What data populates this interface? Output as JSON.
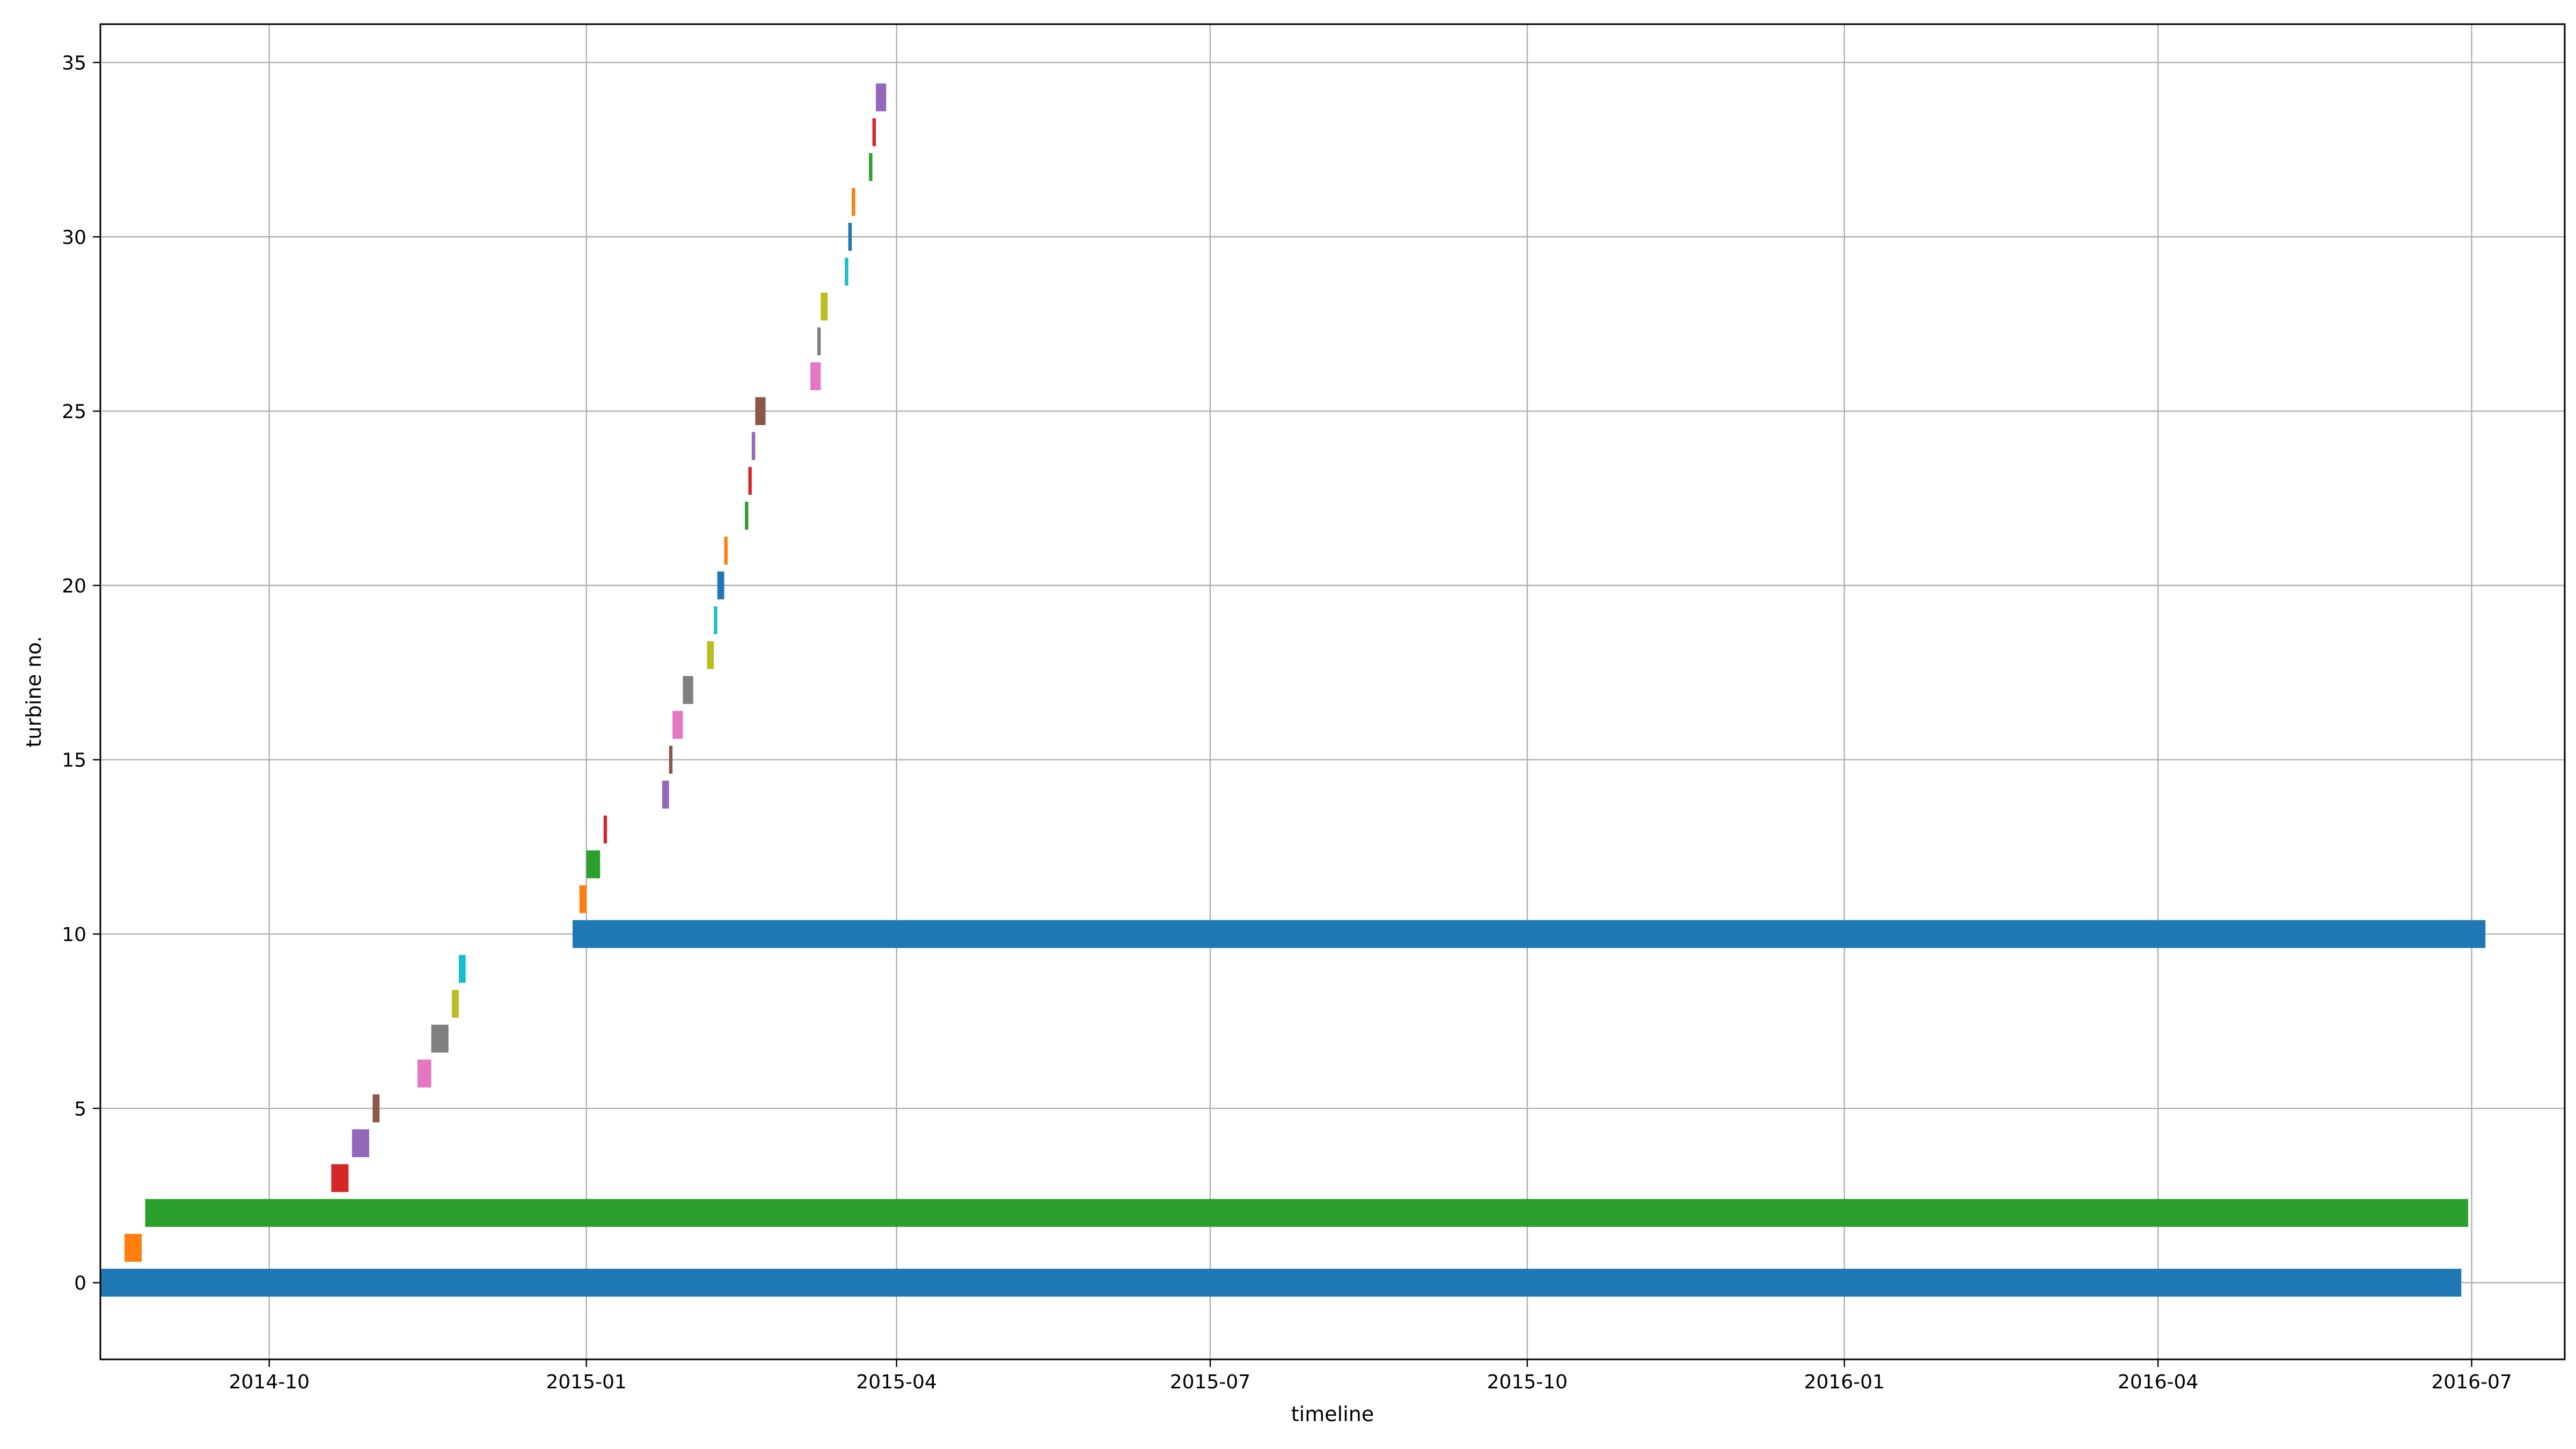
{
  "chart_data": {
    "type": "bar",
    "orientation": "horizontal-timeline",
    "title": "",
    "xlabel": "timeline",
    "ylabel": "turbine no.",
    "xlim": [
      "2014-08-13",
      "2016-07-28"
    ],
    "ylim": [
      -2.2,
      36.1
    ],
    "bar_height": 0.8,
    "grid": true,
    "x_ticks": [
      "2014-10",
      "2015-01",
      "2015-04",
      "2015-07",
      "2015-10",
      "2016-01",
      "2016-04",
      "2016-07"
    ],
    "y_ticks": [
      0,
      5,
      10,
      15,
      20,
      25,
      30,
      35
    ],
    "palette": [
      "#1f77b4",
      "#ff7f0e",
      "#2ca02c",
      "#d62728",
      "#9467bd",
      "#8c564b",
      "#e377c2",
      "#7f7f7f",
      "#bcbd22",
      "#17becf"
    ],
    "bars": [
      {
        "y": 0,
        "start": "2014-08-13",
        "end": "2016-06-28",
        "color": "#1f77b4"
      },
      {
        "y": 1,
        "start": "2014-08-20",
        "end": "2014-08-25",
        "color": "#ff7f0e"
      },
      {
        "y": 2,
        "start": "2014-08-26",
        "end": "2016-06-30",
        "color": "#2ca02c"
      },
      {
        "y": 3,
        "start": "2014-10-19",
        "end": "2014-10-24",
        "color": "#d62728"
      },
      {
        "y": 4,
        "start": "2014-10-25",
        "end": "2014-10-30",
        "color": "#9467bd"
      },
      {
        "y": 5,
        "start": "2014-10-31",
        "end": "2014-11-02",
        "color": "#8c564b"
      },
      {
        "y": 6,
        "start": "2014-11-13",
        "end": "2014-11-17",
        "color": "#e377c2"
      },
      {
        "y": 7,
        "start": "2014-11-17",
        "end": "2014-11-22",
        "color": "#7f7f7f"
      },
      {
        "y": 8,
        "start": "2014-11-23",
        "end": "2014-11-25",
        "color": "#bcbd22"
      },
      {
        "y": 9,
        "start": "2014-11-25",
        "end": "2014-11-27",
        "color": "#17becf"
      },
      {
        "y": 10,
        "start": "2014-12-28",
        "end": "2016-07-05",
        "color": "#1f77b4"
      },
      {
        "y": 11,
        "start": "2014-12-30",
        "end": "2015-01-01",
        "color": "#ff7f0e"
      },
      {
        "y": 12,
        "start": "2015-01-01",
        "end": "2015-01-05",
        "color": "#2ca02c"
      },
      {
        "y": 13,
        "start": "2015-01-06",
        "end": "2015-01-07",
        "color": "#d62728"
      },
      {
        "y": 14,
        "start": "2015-01-23",
        "end": "2015-01-25",
        "color": "#9467bd"
      },
      {
        "y": 15,
        "start": "2015-01-25",
        "end": "2015-01-26",
        "color": "#8c564b"
      },
      {
        "y": 16,
        "start": "2015-01-26",
        "end": "2015-01-29",
        "color": "#e377c2"
      },
      {
        "y": 17,
        "start": "2015-01-29",
        "end": "2015-02-01",
        "color": "#7f7f7f"
      },
      {
        "y": 18,
        "start": "2015-02-05",
        "end": "2015-02-07",
        "color": "#bcbd22"
      },
      {
        "y": 19,
        "start": "2015-02-07",
        "end": "2015-02-08",
        "color": "#17becf"
      },
      {
        "y": 20,
        "start": "2015-02-08",
        "end": "2015-02-10",
        "color": "#1f77b4"
      },
      {
        "y": 21,
        "start": "2015-02-10",
        "end": "2015-02-11",
        "color": "#ff7f0e"
      },
      {
        "y": 22,
        "start": "2015-02-16",
        "end": "2015-02-17",
        "color": "#2ca02c"
      },
      {
        "y": 23,
        "start": "2015-02-17",
        "end": "2015-02-18",
        "color": "#d62728"
      },
      {
        "y": 24,
        "start": "2015-02-18",
        "end": "2015-02-19",
        "color": "#9467bd"
      },
      {
        "y": 25,
        "start": "2015-02-19",
        "end": "2015-02-22",
        "color": "#8c564b"
      },
      {
        "y": 26,
        "start": "2015-03-07",
        "end": "2015-03-10",
        "color": "#e377c2"
      },
      {
        "y": 27,
        "start": "2015-03-09",
        "end": "2015-03-10",
        "color": "#7f7f7f"
      },
      {
        "y": 28,
        "start": "2015-03-10",
        "end": "2015-03-12",
        "color": "#bcbd22"
      },
      {
        "y": 29,
        "start": "2015-03-17",
        "end": "2015-03-18",
        "color": "#17becf"
      },
      {
        "y": 30,
        "start": "2015-03-18",
        "end": "2015-03-19",
        "color": "#1f77b4"
      },
      {
        "y": 31,
        "start": "2015-03-19",
        "end": "2015-03-20",
        "color": "#ff7f0e"
      },
      {
        "y": 32,
        "start": "2015-03-24",
        "end": "2015-03-25",
        "color": "#2ca02c"
      },
      {
        "y": 33,
        "start": "2015-03-25",
        "end": "2015-03-26",
        "color": "#d62728"
      },
      {
        "y": 34,
        "start": "2015-03-26",
        "end": "2015-03-29",
        "color": "#9467bd"
      }
    ]
  }
}
